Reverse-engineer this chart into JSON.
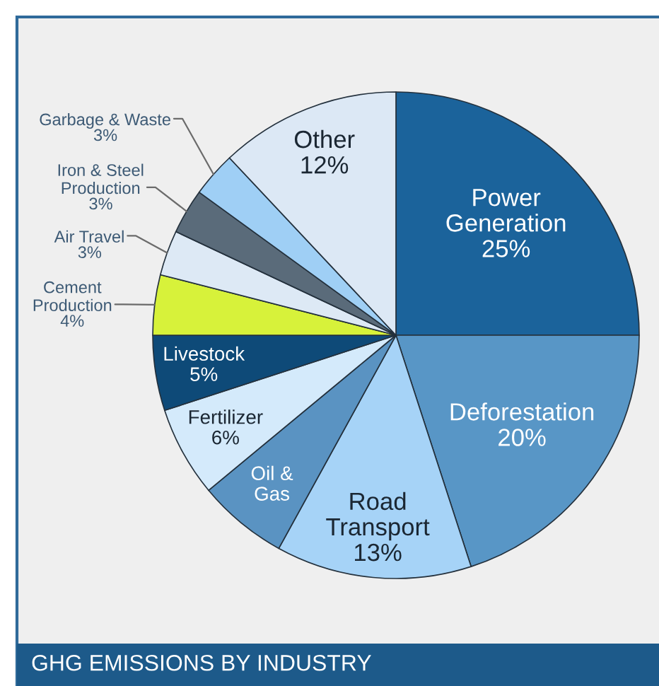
{
  "chart_data": {
    "type": "pie",
    "title": "GHG EMISSIONS BY INDUSTRY",
    "categories": [
      "Power\nGeneration",
      "Deforestation",
      "Road\nTransport",
      "Oil &\nGas",
      "Fertilizer",
      "Livestock",
      "Cement\nProduction",
      "Air Travel",
      "Iron & Steel\nProduction",
      "Garbage & Waste",
      "Other"
    ],
    "values": [
      25,
      20,
      13,
      6,
      6,
      5,
      4,
      3,
      3,
      3,
      12
    ],
    "value_labels": [
      "25%",
      "20%",
      "13%",
      null,
      "6%",
      "5%",
      "4%",
      "3%",
      "3%",
      "3%",
      "12%"
    ],
    "colors": [
      "#1b639b",
      "#5896c6",
      "#a6d3f7",
      "#5a93c2",
      "#d4eafb",
      "#0e4a78",
      "#d7f23a",
      "#dde9f5",
      "#5a6b7a",
      "#9fcff5",
      "#dce8f5"
    ]
  }
}
